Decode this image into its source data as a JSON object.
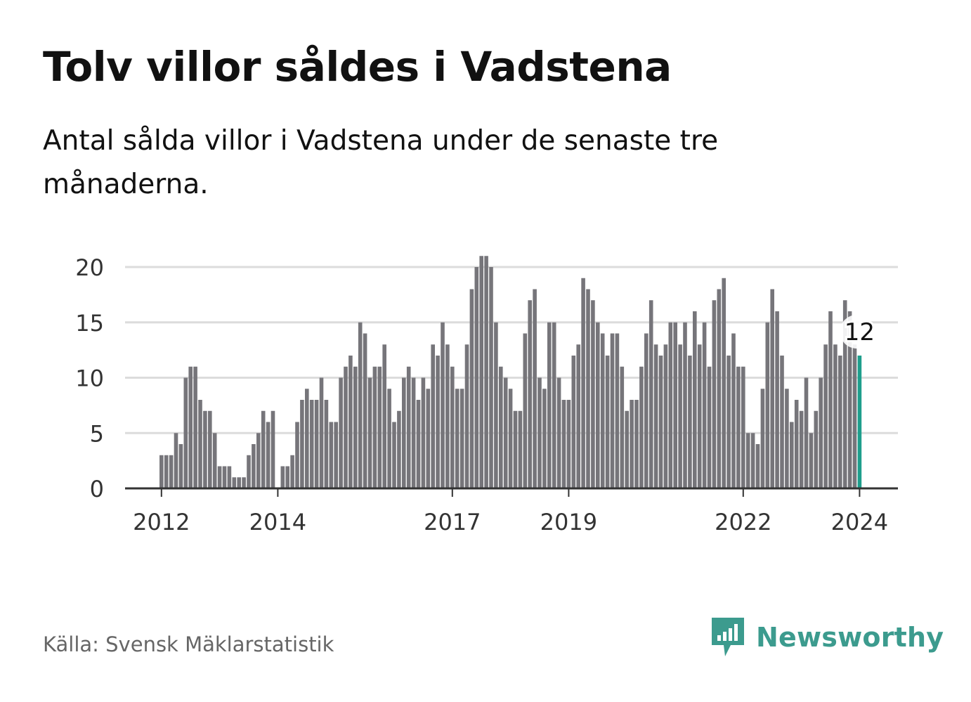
{
  "title": "Tolv villor såldes i Vadstena",
  "subtitle": "Antal sålda villor i Vadstena under de senaste tre månaderna.",
  "source": "Källa: Svensk Mäklarstatistik",
  "brand": {
    "name": "Newsworthy"
  },
  "colors": {
    "bar": "#76757a",
    "highlight": "#1e9e8c",
    "grid": "#dcdcdc",
    "axis": "#333333",
    "brand": "#3c9b8e"
  },
  "chart_data": {
    "type": "bar",
    "title": "Tolv villor såldes i Vadstena",
    "xlabel": "",
    "ylabel": "",
    "ylim": [
      0,
      22
    ],
    "yticks": [
      0,
      5,
      10,
      15,
      20
    ],
    "grid": true,
    "start": "2012-01",
    "x_tick_labels": [
      {
        "label": "2012",
        "index": 0
      },
      {
        "label": "2014",
        "index": 24
      },
      {
        "label": "2017",
        "index": 60
      },
      {
        "label": "2019",
        "index": 84
      },
      {
        "label": "2022",
        "index": 120
      },
      {
        "label": "2024",
        "index": 144
      }
    ],
    "values": [
      3,
      3,
      3,
      5,
      4,
      10,
      11,
      11,
      8,
      7,
      7,
      5,
      2,
      2,
      2,
      1,
      1,
      1,
      3,
      4,
      5,
      7,
      6,
      7,
      0,
      2,
      2,
      3,
      6,
      8,
      9,
      8,
      8,
      10,
      8,
      6,
      6,
      10,
      11,
      12,
      11,
      15,
      14,
      10,
      11,
      11,
      13,
      9,
      6,
      7,
      10,
      11,
      10,
      8,
      10,
      9,
      13,
      12,
      15,
      13,
      11,
      9,
      9,
      13,
      18,
      20,
      21,
      21,
      20,
      15,
      11,
      10,
      9,
      7,
      7,
      14,
      17,
      18,
      10,
      9,
      15,
      15,
      10,
      8,
      8,
      12,
      13,
      19,
      18,
      17,
      15,
      14,
      12,
      14,
      14,
      11,
      7,
      8,
      8,
      11,
      14,
      17,
      13,
      12,
      13,
      15,
      15,
      13,
      15,
      12,
      16,
      13,
      15,
      11,
      17,
      18,
      19,
      12,
      14,
      11,
      11,
      5,
      5,
      4,
      9,
      15,
      18,
      16,
      12,
      9,
      6,
      8,
      7,
      10,
      5,
      7,
      10,
      13,
      16,
      13,
      12,
      17,
      16,
      13,
      12
    ],
    "highlight_index": 144,
    "highlight_label": "12"
  }
}
